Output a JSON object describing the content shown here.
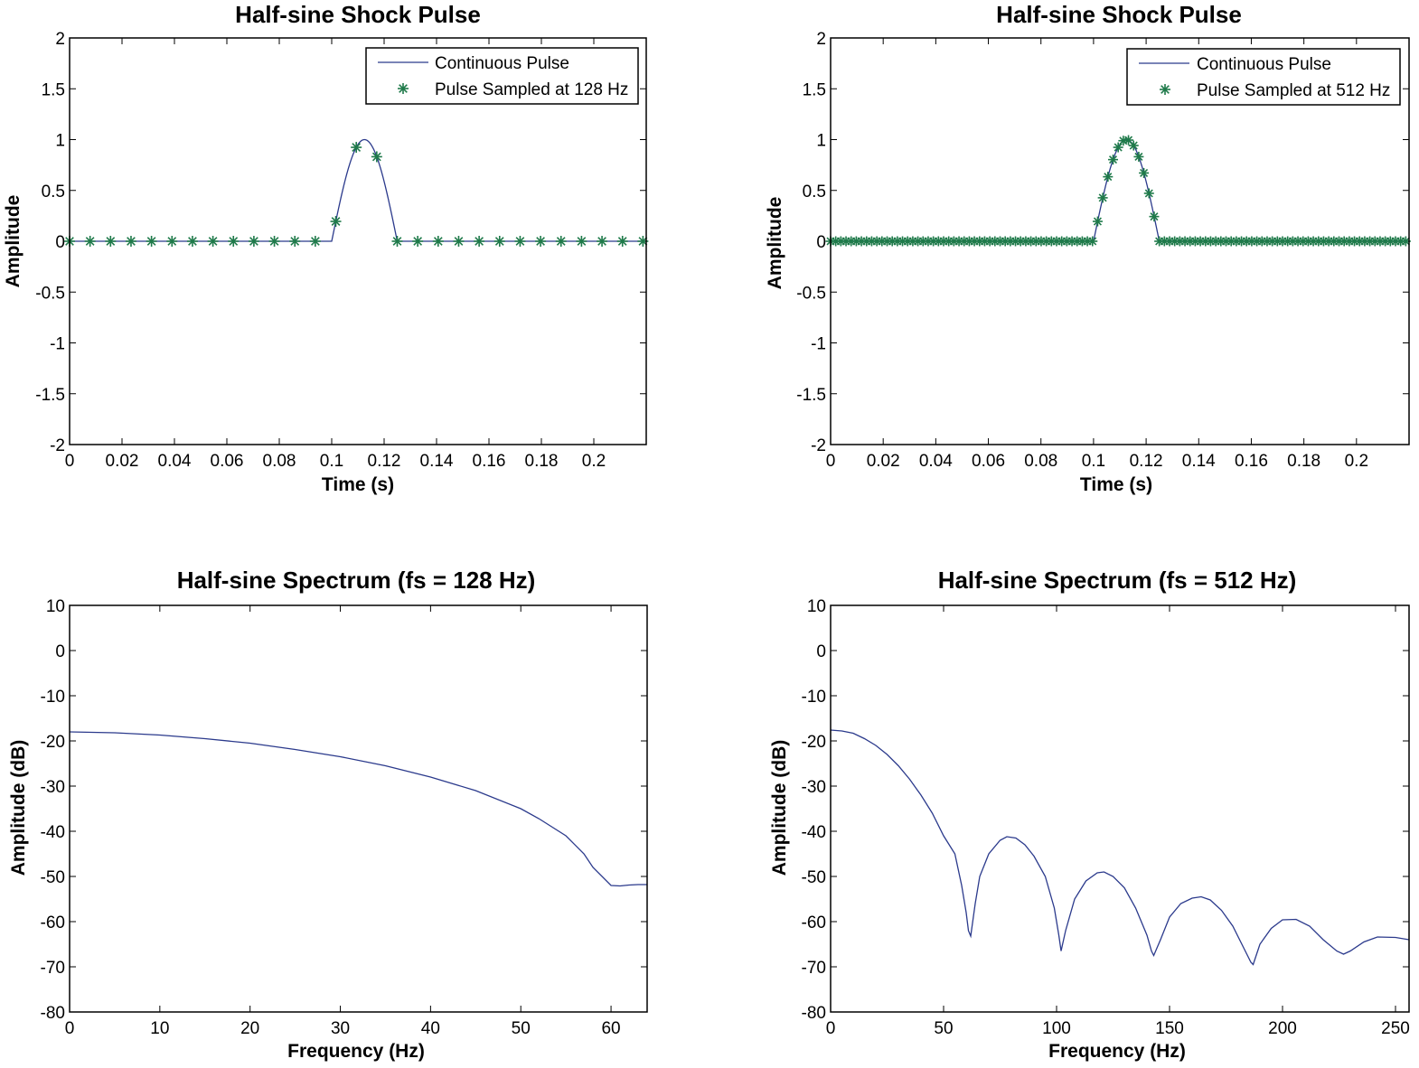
{
  "colors": {
    "continuous_line": "#2b3a8c",
    "samples": "#1f7a4a",
    "axes": "#000000",
    "background": "#ffffff"
  },
  "chart_data": [
    {
      "type": "line",
      "title": "Half-sine Shock Pulse",
      "xlabel": "Time (s)",
      "ylabel": "Amplitude",
      "xlim": [
        0,
        0.22
      ],
      "ylim": [
        -2,
        2
      ],
      "xticks": [
        0,
        0.02,
        0.04,
        0.06,
        0.08,
        0.1,
        0.12,
        0.14,
        0.16,
        0.18,
        0.2
      ],
      "xtick_labels": [
        "0",
        "0.02",
        "0.04",
        "0.06",
        "0.08",
        "0.1",
        "0.12",
        "0.14",
        "0.16",
        "0.18",
        "0.2"
      ],
      "yticks": [
        2,
        1.5,
        1,
        0.5,
        0,
        -0.5,
        -1,
        -1.5,
        -2
      ],
      "ytick_labels": [
        "2",
        "1.5",
        "1",
        "0.5",
        "0",
        "-0.5",
        "-1",
        "-1.5",
        "-2"
      ],
      "grid": false,
      "legend_position": "top-right",
      "pulse": {
        "start": 0.1,
        "duration": 0.025,
        "amplitude": 1
      },
      "series": [
        {
          "name": "Continuous Pulse",
          "style": "line"
        },
        {
          "name": "Pulse Sampled at 128 Hz",
          "style": "asterisk",
          "sample_rate": 128
        }
      ]
    },
    {
      "type": "line",
      "title": "Half-sine Shock Pulse",
      "xlabel": "Time (s)",
      "ylabel": "Amplitude",
      "xlim": [
        0,
        0.22
      ],
      "ylim": [
        -2,
        2
      ],
      "xticks": [
        0,
        0.02,
        0.04,
        0.06,
        0.08,
        0.1,
        0.12,
        0.14,
        0.16,
        0.18,
        0.2
      ],
      "xtick_labels": [
        "0",
        "0.02",
        "0.04",
        "0.06",
        "0.08",
        "0.1",
        "0.12",
        "0.14",
        "0.16",
        "0.18",
        "0.2"
      ],
      "yticks": [
        2,
        1.5,
        1,
        0.5,
        0,
        -0.5,
        -1,
        -1.5,
        -2
      ],
      "ytick_labels": [
        "2",
        "1.5",
        "1",
        "0.5",
        "0",
        "-0.5",
        "-1",
        "-1.5",
        "-2"
      ],
      "grid": false,
      "legend_position": "top-right",
      "pulse": {
        "start": 0.1,
        "duration": 0.025,
        "amplitude": 1
      },
      "series": [
        {
          "name": "Continuous Pulse",
          "style": "line"
        },
        {
          "name": "Pulse Sampled at 512 Hz",
          "style": "asterisk",
          "sample_rate": 512
        }
      ]
    },
    {
      "type": "line",
      "title": "Half-sine Spectrum (fs = 128 Hz)",
      "xlabel": "Frequency (Hz)",
      "ylabel": "Amplitude (dB)",
      "xlim": [
        0,
        64
      ],
      "ylim": [
        -80,
        10
      ],
      "xticks": [
        0,
        10,
        20,
        30,
        40,
        50,
        60
      ],
      "xtick_labels": [
        "0",
        "10",
        "20",
        "30",
        "40",
        "50",
        "60"
      ],
      "yticks": [
        10,
        0,
        -10,
        -20,
        -30,
        -40,
        -50,
        -60,
        -70,
        -80
      ],
      "ytick_labels": [
        "10",
        "0",
        "-10",
        "-20",
        "-30",
        "-40",
        "-50",
        "-60",
        "-70",
        "-80"
      ],
      "grid": false,
      "series": [
        {
          "name": "Spectrum",
          "x": [
            0,
            5,
            10,
            15,
            20,
            25,
            30,
            35,
            40,
            45,
            50,
            52,
            55,
            57,
            58,
            60,
            61,
            62,
            63,
            64
          ],
          "values": [
            -18,
            -18.2,
            -18.7,
            -19.5,
            -20.5,
            -21.9,
            -23.5,
            -25.5,
            -28,
            -31,
            -35,
            -37.2,
            -41,
            -45,
            -48,
            -52,
            -52.1,
            -51.9,
            -51.8,
            -51.8
          ]
        }
      ]
    },
    {
      "type": "line",
      "title": "Half-sine Spectrum (fs = 512 Hz)",
      "xlabel": "Frequency (Hz)",
      "ylabel": "Amplitude (dB)",
      "xlim": [
        0,
        256
      ],
      "ylim": [
        -80,
        10
      ],
      "xticks": [
        0,
        50,
        100,
        150,
        200,
        250
      ],
      "xtick_labels": [
        "0",
        "50",
        "100",
        "150",
        "200",
        "250"
      ],
      "yticks": [
        10,
        0,
        -10,
        -20,
        -30,
        -40,
        -50,
        -60,
        -70,
        -80
      ],
      "ytick_labels": [
        "10",
        "0",
        "-10",
        "-20",
        "-30",
        "-40",
        "-50",
        "-60",
        "-70",
        "-80"
      ],
      "grid": false,
      "series": [
        {
          "name": "Spectrum",
          "x": [
            0,
            5,
            10,
            15,
            20,
            25,
            30,
            35,
            40,
            45,
            50,
            55,
            58,
            60,
            61,
            62,
            64,
            66,
            70,
            75,
            78,
            82,
            86,
            90,
            95,
            99,
            101,
            102,
            104,
            108,
            113,
            118,
            121,
            125,
            130,
            135,
            140,
            142,
            143,
            146,
            150,
            155,
            160,
            164,
            168,
            173,
            178,
            183,
            186,
            187,
            190,
            195,
            200,
            206,
            212,
            218,
            224,
            227,
            230,
            236,
            242,
            250,
            256
          ],
          "values": [
            -17.6,
            -17.8,
            -18.3,
            -19.5,
            -21,
            -23,
            -25.5,
            -28.5,
            -32,
            -36,
            -41,
            -45,
            -52,
            -58,
            -62,
            -63.2,
            -56,
            -50,
            -45,
            -42,
            -41.2,
            -41.5,
            -43,
            -45.5,
            -50,
            -57,
            -63,
            -66.5,
            -62,
            -55,
            -51,
            -49.2,
            -49,
            -50,
            -52.5,
            -57,
            -63,
            -66.5,
            -67.5,
            -64,
            -59,
            -56,
            -54.8,
            -54.5,
            -55.2,
            -57.5,
            -61,
            -66,
            -69,
            -69.5,
            -65,
            -61.5,
            -59.6,
            -59.5,
            -61,
            -64,
            -66.5,
            -67.2,
            -66.5,
            -64.5,
            -63.4,
            -63.5,
            -64
          ]
        }
      ]
    }
  ]
}
